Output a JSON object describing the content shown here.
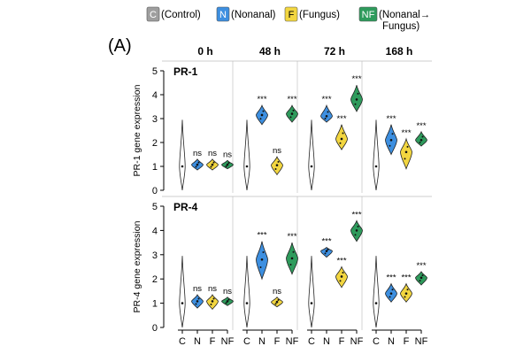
{
  "figure": {
    "panel_label": "(A)",
    "legend": [
      {
        "key": "C",
        "label": "(Control)",
        "color": "#9e9e9e",
        "key_color": "#ffffff"
      },
      {
        "key": "N",
        "label": "(Nonanal)",
        "color": "#3d8fe0",
        "key_color": "#ffffff"
      },
      {
        "key": "F",
        "label": "(Fungus)",
        "color": "#f2d640",
        "key_color": "#000000"
      },
      {
        "key": "NF",
        "label": "(Nonanal→",
        "label2": "Fungus)",
        "color": "#2e9b5c",
        "key_color": "#ffffff"
      }
    ],
    "time_headers": [
      "0 h",
      "48 h",
      "72 h",
      "168 h"
    ]
  },
  "chart_data": [
    {
      "type": "violin",
      "title": "PR-1",
      "ylabel": "PR-1 gene expression",
      "ylim": [
        0,
        5
      ],
      "yticks": [
        0,
        1,
        2,
        3,
        4,
        5
      ],
      "groups": [
        "C",
        "N",
        "F",
        "NF"
      ],
      "timepoints": [
        {
          "label": "0 h",
          "medians": [
            1.0,
            1.07,
            1.07,
            1.07
          ],
          "ranges": [
            [
              0.0,
              2.95
            ],
            [
              0.85,
              1.3
            ],
            [
              0.85,
              1.3
            ],
            [
              0.9,
              1.25
            ]
          ],
          "significance": [
            "",
            "ns",
            "ns",
            "ns"
          ]
        },
        {
          "label": "48 h",
          "medians": [
            1.0,
            3.15,
            null,
            3.2
          ],
          "ranges": [
            [
              0.0,
              2.95
            ],
            [
              2.75,
              3.55
            ],
            [
              0.65,
              1.4
            ],
            [
              2.85,
              3.55
            ]
          ],
          "significance": [
            "",
            "***",
            "ns",
            "***"
          ],
          "f_median": 1.05
        },
        {
          "label": "72 h",
          "medians": [
            1.0,
            3.1,
            2.15,
            3.8
          ],
          "ranges": [
            [
              0.0,
              2.95
            ],
            [
              2.85,
              3.55
            ],
            [
              1.7,
              2.75
            ],
            [
              3.3,
              4.4
            ]
          ],
          "significance": [
            "",
            "***",
            "***",
            "***"
          ]
        },
        {
          "label": "168 h",
          "medians": [
            1.0,
            2.1,
            1.6,
            2.1
          ],
          "ranges": [
            [
              0.0,
              2.95
            ],
            [
              1.5,
              2.75
            ],
            [
              0.9,
              2.15
            ],
            [
              1.85,
              2.45
            ]
          ],
          "significance": [
            "",
            "***",
            "***",
            "***"
          ]
        }
      ]
    },
    {
      "type": "violin",
      "title": "PR-4",
      "ylabel": "PR-4 gene expression",
      "ylim": [
        0,
        5
      ],
      "yticks": [
        0,
        1,
        2,
        3,
        4,
        5
      ],
      "groups": [
        "C",
        "N",
        "F",
        "NF"
      ],
      "xticklabels": [
        "C",
        "N",
        "F",
        "NF"
      ],
      "timepoints": [
        {
          "label": "0 h",
          "medians": [
            1.0,
            1.08,
            1.08,
            1.08
          ],
          "ranges": [
            [
              0.0,
              2.95
            ],
            [
              0.8,
              1.35
            ],
            [
              0.75,
              1.35
            ],
            [
              0.9,
              1.25
            ]
          ],
          "significance": [
            "",
            "ns",
            "ns",
            "ns"
          ]
        },
        {
          "label": "48 h",
          "medians": [
            1.0,
            2.8,
            1.05,
            2.85
          ],
          "ranges": [
            [
              0.0,
              2.95
            ],
            [
              2.0,
              3.55
            ],
            [
              0.85,
              1.25
            ],
            [
              2.2,
              3.5
            ]
          ],
          "significance": [
            "",
            "***",
            "ns",
            "***"
          ]
        },
        {
          "label": "72 h",
          "medians": [
            1.0,
            3.15,
            2.1,
            4.0
          ],
          "ranges": [
            [
              0.0,
              2.95
            ],
            [
              2.9,
              3.3
            ],
            [
              1.65,
              2.5
            ],
            [
              3.55,
              4.4
            ]
          ],
          "significance": [
            "",
            "***",
            "***",
            "***"
          ]
        },
        {
          "label": "168 h",
          "medians": [
            1.0,
            1.4,
            1.4,
            2.05
          ],
          "ranges": [
            [
              0.0,
              2.95
            ],
            [
              1.05,
              1.8
            ],
            [
              1.05,
              1.8
            ],
            [
              1.75,
              2.3
            ]
          ],
          "significance": [
            "",
            "***",
            "***",
            "***"
          ]
        }
      ]
    }
  ]
}
